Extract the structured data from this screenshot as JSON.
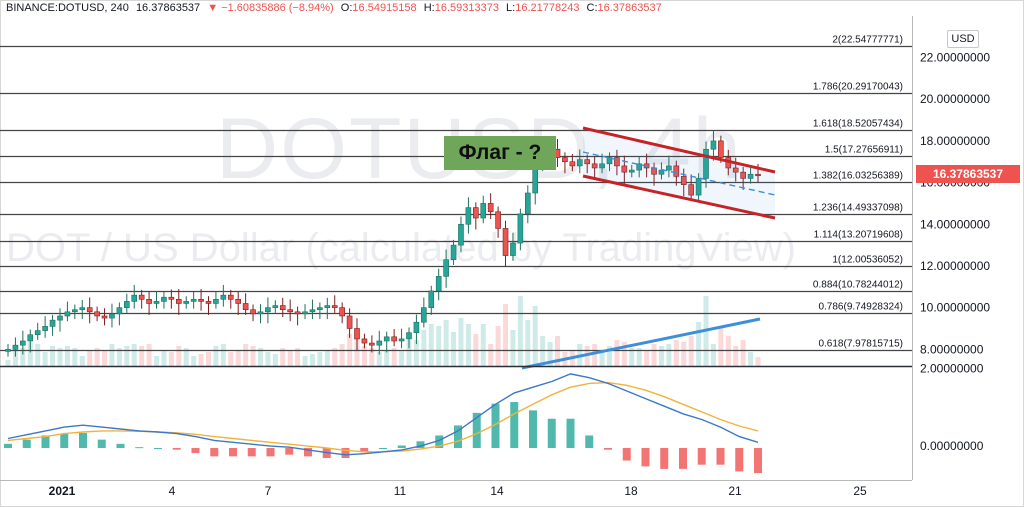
{
  "header": {
    "symbol": "BINANCE:DOTUSD, 240",
    "last": "16.37863537",
    "change_arrow": "▼",
    "change": "−1.60835886 (−8.94%)",
    "o_label": "O:",
    "o_value": "16.54915158",
    "h_label": "H:",
    "h_value": "16.59313373",
    "l_label": "L:",
    "l_value": "16.21778243",
    "c_label": "C:",
    "c_value": "16.37863537"
  },
  "currency_button": "USD",
  "price_tag": "16.37863537",
  "annotation": "Флаг - ?",
  "watermark": {
    "symbol": "DOTUSD, 4h",
    "description": "DOT / US Dollar (calculated by TradingView)"
  },
  "colors": {
    "up": "#26a69a",
    "down": "#ef5350",
    "channel": "#cc1f1f",
    "trendline": "#3d8fd8",
    "macd_line": "#3c78c8",
    "signal_line": "#f2b33d",
    "annotation_bg": "#6fa65a"
  },
  "price_axis": [
    "22.00000000",
    "20.00000000",
    "18.00000000",
    "16.00000000",
    "14.00000000",
    "12.00000000",
    "10.00000000",
    "8.00000000"
  ],
  "macd_axis": [
    "2.00000000",
    "0.00000000"
  ],
  "time_axis": [
    "2021",
    "4",
    "7",
    "11",
    "14",
    "18",
    "21",
    "25"
  ],
  "fib_levels": [
    {
      "label": "2(22.54777771)",
      "value": 22.54777771
    },
    {
      "label": "1.786(20.29170043)",
      "value": 20.29170043
    },
    {
      "label": "1.618(18.52057434)",
      "value": 18.52057434
    },
    {
      "label": "1.5(17.27656911)",
      "value": 17.27656911
    },
    {
      "label": "1.382(16.03256389)",
      "value": 16.03256389
    },
    {
      "label": "1.236(14.49337098)",
      "value": 14.49337098
    },
    {
      "label": "1.114(13.20719608)",
      "value": 13.20719608
    },
    {
      "label": "1(12.00536052)",
      "value": 12.00536052
    },
    {
      "label": "0.884(10.78244012)",
      "value": 10.78244012
    },
    {
      "label": "0.786(9.74928324)",
      "value": 9.74928324
    },
    {
      "label": "0.618(7.97815715)",
      "value": 7.97815715
    }
  ],
  "chart_data": {
    "type": "candlestick",
    "ylim": [
      7.2,
      23.8
    ],
    "close_series": [
      8.0,
      8.2,
      8.4,
      8.7,
      8.9,
      9.1,
      9.4,
      9.6,
      9.8,
      9.9,
      10.0,
      9.8,
      9.6,
      9.5,
      9.7,
      10.0,
      10.3,
      10.6,
      10.4,
      10.2,
      10.3,
      10.5,
      10.4,
      10.2,
      10.3,
      10.4,
      10.3,
      10.2,
      10.4,
      10.6,
      10.4,
      10.2,
      9.9,
      9.7,
      9.8,
      10.0,
      10.1,
      9.9,
      9.8,
      9.7,
      9.8,
      9.9,
      10.0,
      10.1,
      10.0,
      9.6,
      9.0,
      8.5,
      8.3,
      8.2,
      8.4,
      8.6,
      8.4,
      8.5,
      8.8,
      9.3,
      10.0,
      10.8,
      11.5,
      12.3,
      13.0,
      14.0,
      14.8,
      14.3,
      15.0,
      14.6,
      13.8,
      12.5,
      13.1,
      14.5,
      15.5,
      16.8,
      17.3,
      17.6,
      17.2,
      17.0,
      16.8,
      17.1,
      16.9,
      16.7,
      16.9,
      17.2,
      16.8,
      16.5,
      16.6,
      16.9,
      16.7,
      16.4,
      16.6,
      16.8,
      16.3,
      15.9,
      15.4,
      16.2,
      17.6,
      18.0,
      17.2,
      16.7,
      16.5,
      16.2,
      16.4,
      16.38
    ],
    "macd_line": [
      0.25,
      0.35,
      0.45,
      0.55,
      0.6,
      0.55,
      0.5,
      0.45,
      0.42,
      0.38,
      0.3,
      0.2,
      0.15,
      0.1,
      0.05,
      0.02,
      -0.05,
      -0.12,
      -0.18,
      -0.15,
      -0.1,
      -0.05,
      0.05,
      0.2,
      0.45,
      0.8,
      1.15,
      1.45,
      1.6,
      1.75,
      1.95,
      1.85,
      1.7,
      1.5,
      1.3,
      1.1,
      0.9,
      0.75,
      0.55,
      0.3,
      0.15
    ],
    "signal_line": [
      0.2,
      0.25,
      0.3,
      0.38,
      0.42,
      0.45,
      0.45,
      0.44,
      0.42,
      0.4,
      0.36,
      0.3,
      0.25,
      0.2,
      0.15,
      0.1,
      0.05,
      0.0,
      -0.06,
      -0.1,
      -0.1,
      -0.08,
      -0.03,
      0.05,
      0.18,
      0.38,
      0.62,
      0.9,
      1.15,
      1.4,
      1.6,
      1.7,
      1.72,
      1.65,
      1.52,
      1.35,
      1.15,
      0.95,
      0.75,
      0.58,
      0.45
    ]
  }
}
